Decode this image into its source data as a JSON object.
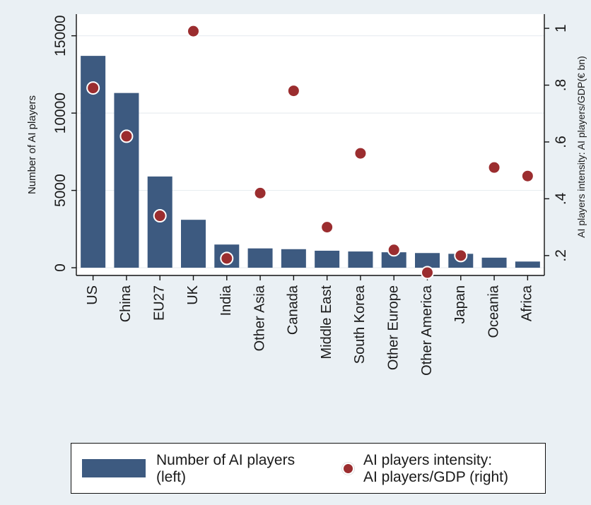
{
  "chart_data": {
    "type": "bar",
    "categories": [
      "US",
      "China",
      "EU27",
      "UK",
      "India",
      "Other Asia",
      "Canada",
      "Middle East",
      "South Korea",
      "Other Europe",
      "Other America",
      "Japan",
      "Oceania",
      "Africa"
    ],
    "series": [
      {
        "name": "Number of AI players\n(left)",
        "kind": "bar",
        "axis": "left",
        "color": "#3d5a80",
        "values": [
          13700,
          11300,
          5900,
          3100,
          1500,
          1250,
          1200,
          1100,
          1050,
          1000,
          950,
          900,
          650,
          400
        ]
      },
      {
        "name": "AI players intensity:\nAI players/GDP (right)",
        "kind": "scatter",
        "axis": "right",
        "color": "#9b2d2f",
        "values": [
          0.79,
          0.62,
          0.34,
          0.99,
          0.19,
          0.42,
          0.78,
          0.3,
          0.56,
          0.22,
          0.14,
          0.2,
          0.51,
          0.48
        ]
      }
    ],
    "y_left": {
      "label": "Number of AI players",
      "ticks": [
        0,
        5000,
        10000,
        15000
      ],
      "tick_labels": [
        "0",
        "5000",
        "10000",
        "15000"
      ],
      "range": [
        -500,
        16400
      ]
    },
    "y_right": {
      "label": "AI players intensity: AI players/GDP(€ bn)",
      "ticks": [
        0.2,
        0.4,
        0.6,
        0.8,
        1.0
      ],
      "tick_labels": [
        ".2",
        ".4",
        ".6",
        ".8",
        "1"
      ],
      "range": [
        0.13,
        1.05
      ]
    },
    "grid": "horizontal",
    "legend_position": "bottom",
    "background": "#eaf0f4",
    "plot_background": "#ffffff"
  }
}
